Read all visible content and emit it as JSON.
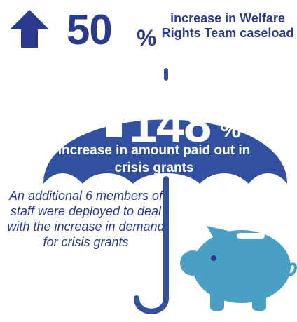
{
  "colors": {
    "navy": "#2a3a8c",
    "umbrella": "#3150a0",
    "teal": "#4aa0c4",
    "white": "#ffffff"
  },
  "top_stat": {
    "value": "50",
    "unit": "%",
    "caption": "increase in Welfare Rights Team caseload",
    "icon": "up-arrow-icon"
  },
  "umbrella_stat": {
    "value": "148",
    "unit": "%",
    "caption": "increase in amount paid out in crisis grants",
    "icon": "up-arrow-icon"
  },
  "staff_note": "An additional 6 members of staff were deployed to deal with the increase in demand for crisis grants",
  "illustrations": [
    "umbrella-icon",
    "piggy-bank-icon"
  ]
}
